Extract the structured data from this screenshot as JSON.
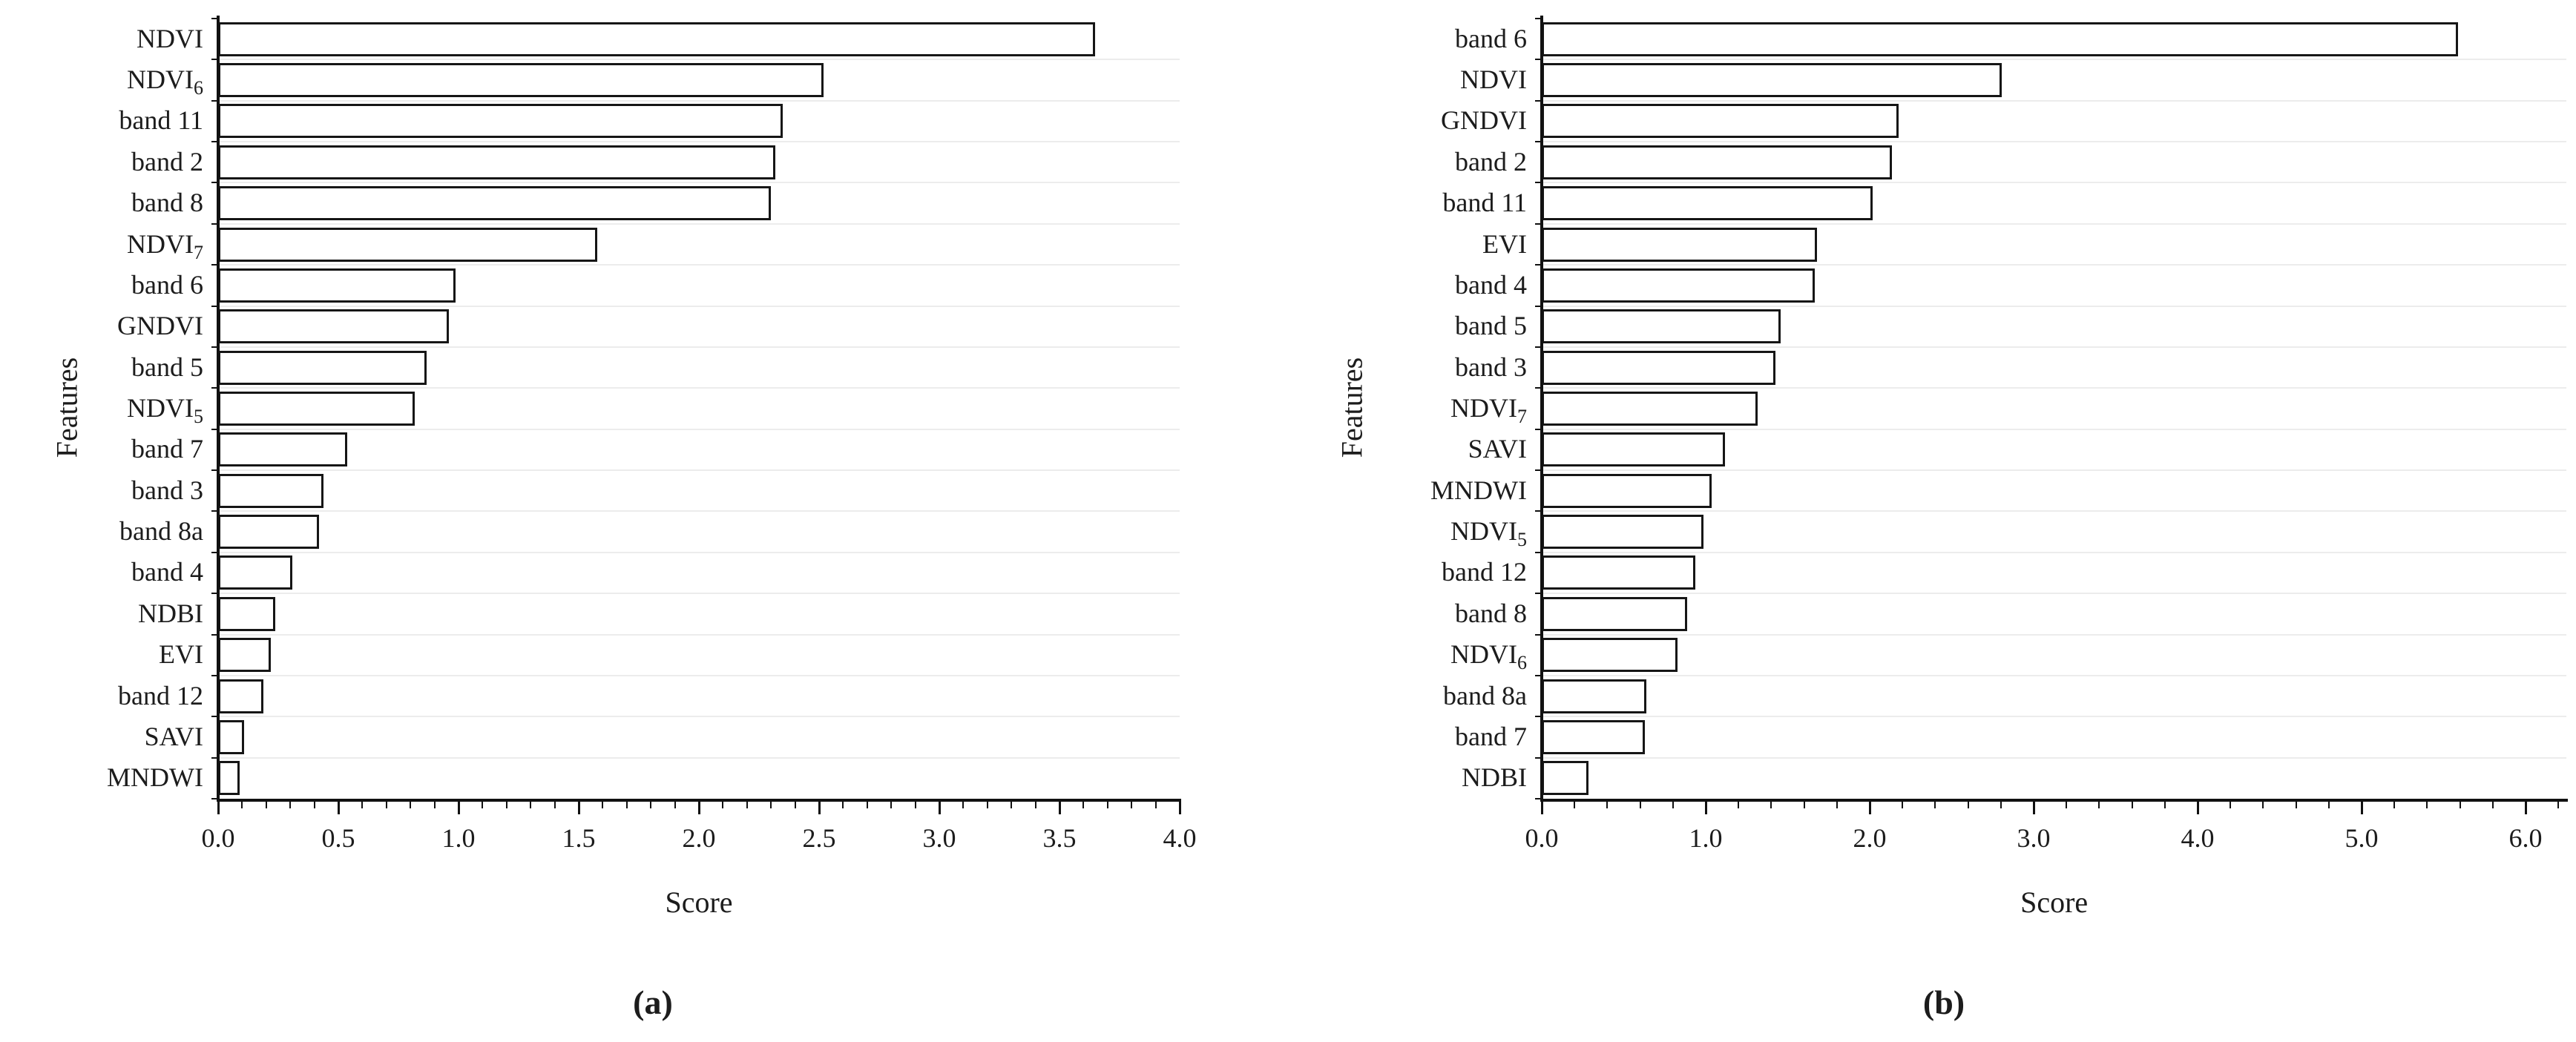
{
  "figure": {
    "background": "#ffffff",
    "text_color": "#1c1c1c"
  },
  "chart_data": [
    {
      "type": "bar",
      "orientation": "horizontal",
      "panel_caption": "(a)",
      "title": "",
      "xlabel": "Score",
      "ylabel": "Features",
      "xlim": [
        0.0,
        4.0
      ],
      "x_major_step": 0.5,
      "x_minor_step": 0.1,
      "x_tick_labels": [
        "0.0",
        "0.5",
        "1.0",
        "1.5",
        "2.0",
        "2.5",
        "3.0",
        "3.5",
        "4.0"
      ],
      "grid": "horizontal-light",
      "legend": "none",
      "bar_fill": "#ffffff",
      "bar_border": "#161616",
      "gridline_color": "#ececec",
      "categories": [
        "NDVI",
        "NDVI_6",
        "band 11",
        "band 2",
        "band 8",
        "NDVI_7",
        "band 6",
        "GNDVI",
        "band 5",
        "NDVI_5",
        "band 7",
        "band 3",
        "band 8a",
        "band 4",
        "NDBI",
        "EVI",
        "band 12",
        "SAVI",
        "MNDWI"
      ],
      "values": [
        3.63,
        2.5,
        2.33,
        2.3,
        2.28,
        1.56,
        0.97,
        0.94,
        0.85,
        0.8,
        0.52,
        0.42,
        0.4,
        0.29,
        0.22,
        0.2,
        0.17,
        0.09,
        0.07
      ]
    },
    {
      "type": "bar",
      "orientation": "horizontal",
      "panel_caption": "(b)",
      "title": "",
      "xlabel": "Score",
      "ylabel": "Features",
      "xlim": [
        0.0,
        6.0
      ],
      "x_major_step": 1.0,
      "x_minor_step": 0.2,
      "x_tick_labels": [
        "0.0",
        "1.0",
        "2.0",
        "3.0",
        "4.0",
        "5.0",
        "6.0"
      ],
      "grid": "horizontal-light",
      "legend": "none",
      "bar_fill": "#ffffff",
      "bar_border": "#161616",
      "gridline_color": "#ececec",
      "categories": [
        "band 6",
        "NDVI",
        "GNDVI",
        "band 2",
        "band 11",
        "EVI",
        "band 4",
        "band 5",
        "band 3",
        "NDVI_7",
        "SAVI",
        "MNDWI",
        "NDVI_5",
        "band 12",
        "band 8",
        "NDVI_6",
        "band 8a",
        "band 7",
        "NDBI"
      ],
      "values": [
        5.56,
        2.78,
        2.15,
        2.11,
        1.99,
        1.65,
        1.64,
        1.43,
        1.4,
        1.29,
        1.09,
        1.01,
        0.96,
        0.91,
        0.86,
        0.8,
        0.61,
        0.6,
        0.26
      ]
    }
  ]
}
